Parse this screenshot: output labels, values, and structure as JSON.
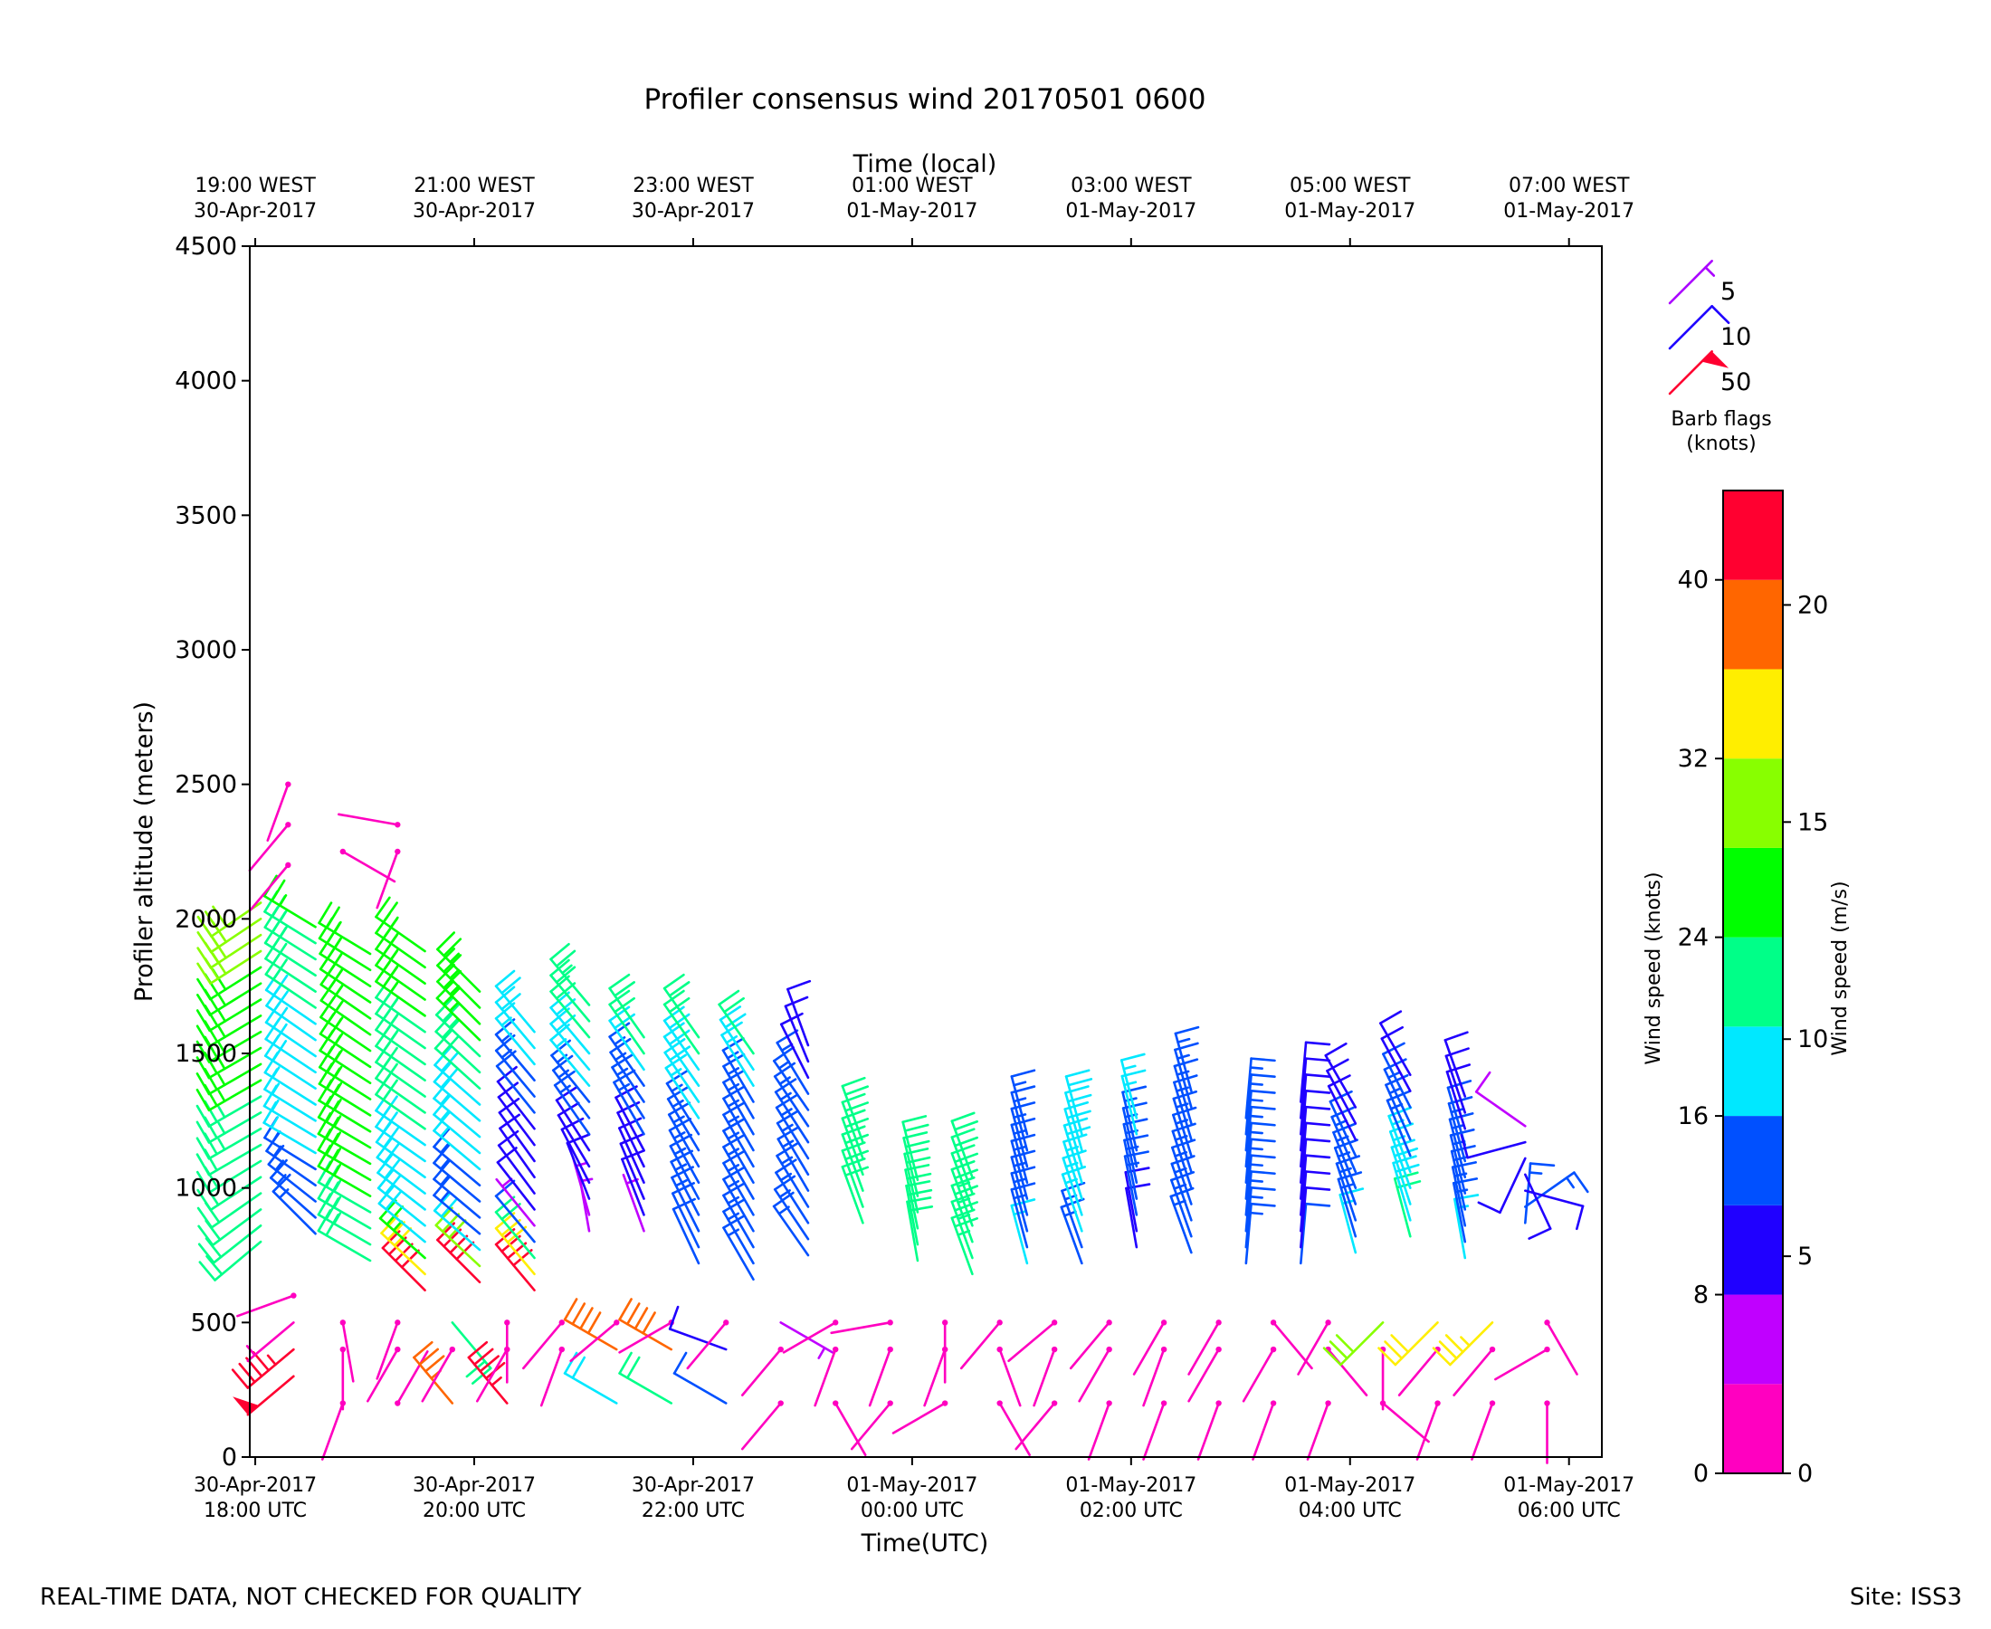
{
  "chart_data": {
    "type": "wind-barb",
    "title": "Profiler consensus wind 20170501 0600",
    "xlabel": "Time(UTC)",
    "xlabel_top": "Time (local)",
    "ylabel": "Profiler altitude (meters)",
    "ylim": [
      0,
      4500
    ],
    "yticks": [
      0,
      500,
      1000,
      1500,
      2000,
      2500,
      3000,
      3500,
      4000,
      4500
    ],
    "x_range_hours": [
      -0.05,
      12.3
    ],
    "x_start_utc": "30-Apr-2017 18:00 UTC",
    "xticks_bottom": [
      {
        "hour": 0,
        "line1": "30-Apr-2017",
        "line2": "18:00 UTC"
      },
      {
        "hour": 2,
        "line1": "30-Apr-2017",
        "line2": "20:00 UTC"
      },
      {
        "hour": 4,
        "line1": "30-Apr-2017",
        "line2": "22:00 UTC"
      },
      {
        "hour": 6,
        "line1": "01-May-2017",
        "line2": "00:00 UTC"
      },
      {
        "hour": 8,
        "line1": "01-May-2017",
        "line2": "02:00 UTC"
      },
      {
        "hour": 10,
        "line1": "01-May-2017",
        "line2": "04:00 UTC"
      },
      {
        "hour": 12,
        "line1": "01-May-2017",
        "line2": "06:00 UTC"
      }
    ],
    "xticks_top": [
      {
        "hour": 0,
        "line1": "19:00 WEST",
        "line2": "30-Apr-2017"
      },
      {
        "hour": 2,
        "line1": "21:00 WEST",
        "line2": "30-Apr-2017"
      },
      {
        "hour": 4,
        "line1": "23:00 WEST",
        "line2": "30-Apr-2017"
      },
      {
        "hour": 6,
        "line1": "01:00 WEST",
        "line2": "01-May-2017"
      },
      {
        "hour": 8,
        "line1": "03:00 WEST",
        "line2": "01-May-2017"
      },
      {
        "hour": 10,
        "line1": "05:00 WEST",
        "line2": "01-May-2017"
      },
      {
        "hour": 12,
        "line1": "07:00 WEST",
        "line2": "01-May-2017"
      }
    ],
    "legend": {
      "title": "Barb flags",
      "subtitle": "(knots)",
      "entries": [
        {
          "label": "5",
          "knots": 5,
          "color": "#aa00ff"
        },
        {
          "label": "10",
          "knots": 10,
          "color": "#1f00ff"
        },
        {
          "label": "50",
          "knots": 50,
          "color": "#ff0030"
        }
      ]
    },
    "colorbar": {
      "label_knots": "Wind speed (knots)",
      "label_ms": "Wind speed (m/s)",
      "knot_ticks": [
        0,
        8,
        16,
        24,
        32,
        40
      ],
      "ms_ticks": [
        0,
        5,
        10,
        15,
        20
      ],
      "range_knots": [
        0,
        44
      ],
      "bins": [
        {
          "from": 0,
          "to": 4,
          "color": "#ff00c0"
        },
        {
          "from": 4,
          "to": 8,
          "color": "#c000ff"
        },
        {
          "from": 8,
          "to": 12,
          "color": "#2000ff"
        },
        {
          "from": 12,
          "to": 16,
          "color": "#0050ff"
        },
        {
          "from": 16,
          "to": 20,
          "color": "#00e8ff"
        },
        {
          "from": 20,
          "to": 24,
          "color": "#00ff88"
        },
        {
          "from": 24,
          "to": 28,
          "color": "#00ff00"
        },
        {
          "from": 28,
          "to": 32,
          "color": "#88ff00"
        },
        {
          "from": 32,
          "to": 36,
          "color": "#ffee00"
        },
        {
          "from": 36,
          "to": 40,
          "color": "#ff6600"
        },
        {
          "from": 40,
          "to": 44,
          "color": "#ff0030"
        }
      ]
    },
    "upper_mode_profiles": [
      {
        "hour": 0.05,
        "bottom": 800,
        "top": 2100,
        "step": 60,
        "layers": [
          [
            800,
            230,
            22
          ],
          [
            1150,
            240,
            22
          ],
          [
            1550,
            240,
            26
          ],
          [
            2150,
            235,
            30
          ]
        ]
      },
      {
        "hour": 0.55,
        "bottom": 830,
        "top": 2000,
        "step": 60,
        "layers": [
          [
            830,
            315,
            13
          ],
          [
            1100,
            300,
            16
          ],
          [
            1550,
            305,
            19
          ],
          [
            2100,
            300,
            26
          ]
        ]
      },
      {
        "hour": 1.05,
        "bottom": 730,
        "top": 1880,
        "step": 60,
        "layers": [
          [
            730,
            300,
            22
          ],
          [
            1100,
            300,
            26
          ],
          [
            1600,
            305,
            26
          ],
          [
            1950,
            300,
            26
          ]
        ]
      },
      {
        "hour": 1.55,
        "bottom": 620,
        "top": 1900,
        "step": 60,
        "layers": [
          [
            620,
            315,
            40
          ],
          [
            790,
            310,
            18
          ],
          [
            1100,
            305,
            19
          ],
          [
            1600,
            305,
            24
          ],
          [
            1950,
            305,
            25
          ]
        ]
      },
      {
        "hour": 2.05,
        "bottom": 650,
        "top": 1780,
        "step": 60,
        "layers": [
          [
            650,
            315,
            41
          ],
          [
            800,
            310,
            14
          ],
          [
            1200,
            310,
            17
          ],
          [
            1600,
            315,
            25
          ],
          [
            1850,
            315,
            26
          ]
        ]
      },
      {
        "hour": 2.55,
        "bottom": 620,
        "top": 1580,
        "step": 60,
        "layers": [
          [
            620,
            320,
            42
          ],
          [
            830,
            320,
            7
          ],
          [
            1050,
            325,
            10
          ],
          [
            1350,
            320,
            13
          ],
          [
            1650,
            320,
            22
          ]
        ]
      },
      {
        "hour": 3.05,
        "bottom": 840,
        "top": 1720,
        "step": 60,
        "layers": [
          [
            840,
            350,
            6
          ],
          [
            1050,
            330,
            10
          ],
          [
            1350,
            320,
            16
          ],
          [
            1750,
            320,
            25
          ]
        ]
      },
      {
        "hour": 3.55,
        "bottom": 840,
        "top": 1600,
        "step": 60,
        "layers": [
          [
            840,
            340,
            7
          ],
          [
            1050,
            335,
            11
          ],
          [
            1350,
            325,
            14
          ],
          [
            1600,
            325,
            24
          ]
        ]
      },
      {
        "hour": 4.05,
        "bottom": 720,
        "top": 1600,
        "step": 60,
        "layers": [
          [
            720,
            335,
            12
          ],
          [
            1100,
            330,
            14
          ],
          [
            1350,
            325,
            18
          ],
          [
            1650,
            325,
            22
          ]
        ]
      },
      {
        "hour": 4.55,
        "bottom": 660,
        "top": 1500,
        "step": 60,
        "layers": [
          [
            660,
            330,
            15
          ],
          [
            1000,
            330,
            14
          ],
          [
            1300,
            330,
            15
          ],
          [
            1500,
            325,
            20
          ]
        ]
      },
      {
        "hour": 5.05,
        "bottom": 750,
        "top": 1530,
        "step": 60,
        "layers": [
          [
            750,
            325,
            15
          ],
          [
            1000,
            330,
            14
          ],
          [
            1300,
            325,
            14
          ],
          [
            1500,
            340,
            10
          ]
        ]
      },
      {
        "hour": 5.55,
        "bottom": 870,
        "top": 1200,
        "step": 60,
        "layers": [
          [
            870,
            340,
            20
          ],
          [
            1200,
            340,
            20
          ]
        ]
      },
      {
        "hour": 6.05,
        "bottom": 730,
        "top": 1080,
        "step": 60,
        "layers": [
          [
            730,
            350,
            21
          ],
          [
            1080,
            345,
            21
          ]
        ]
      },
      {
        "hour": 6.55,
        "bottom": 680,
        "top": 1080,
        "step": 60,
        "layers": [
          [
            680,
            340,
            23
          ],
          [
            1080,
            340,
            22
          ]
        ]
      },
      {
        "hour": 7.05,
        "bottom": 720,
        "top": 1220,
        "step": 60,
        "layers": [
          [
            720,
            345,
            16
          ],
          [
            1220,
            345,
            15
          ]
        ]
      },
      {
        "hour": 7.55,
        "bottom": 720,
        "top": 1220,
        "step": 60,
        "layers": [
          [
            720,
            340,
            15
          ],
          [
            1220,
            345,
            20
          ]
        ]
      },
      {
        "hour": 8.05,
        "bottom": 780,
        "top": 1300,
        "step": 60,
        "layers": [
          [
            780,
            350,
            11
          ],
          [
            1300,
            345,
            18
          ]
        ]
      },
      {
        "hour": 8.55,
        "bottom": 760,
        "top": 1400,
        "step": 60,
        "layers": [
          [
            760,
            340,
            13
          ],
          [
            1400,
            345,
            15
          ]
        ]
      },
      {
        "hour": 9.05,
        "bottom": 720,
        "top": 1300,
        "step": 60,
        "layers": [
          [
            720,
            5,
            13
          ],
          [
            1300,
            5,
            14
          ]
        ]
      },
      {
        "hour": 9.55,
        "bottom": 720,
        "top": 1320,
        "step": 60,
        "layers": [
          [
            720,
            5,
            12
          ],
          [
            1320,
            5,
            10
          ]
        ]
      },
      {
        "hour": 10.05,
        "bottom": 760,
        "top": 1300,
        "step": 60,
        "layers": [
          [
            760,
            345,
            16
          ],
          [
            1300,
            330,
            10
          ]
        ]
      },
      {
        "hour": 10.55,
        "bottom": 820,
        "top": 1420,
        "step": 60,
        "layers": [
          [
            820,
            345,
            20
          ],
          [
            1420,
            330,
            10
          ]
        ]
      },
      {
        "hour": 11.05,
        "bottom": 740,
        "top": 1380,
        "step": 60,
        "layers": [
          [
            740,
            350,
            16
          ],
          [
            1380,
            340,
            10
          ]
        ]
      },
      {
        "hour": 11.6,
        "bottom": 870,
        "top": 1260,
        "step": 60,
        "layers": [
          [
            870,
            5,
            14
          ],
          [
            1260,
            330,
            7
          ]
        ]
      }
    ],
    "low_mode_barbs": [
      [
        0.35,
        300,
        230,
        48
      ],
      [
        0.35,
        400,
        230,
        47
      ],
      [
        0.35,
        500,
        230,
        3
      ],
      [
        0.35,
        600,
        250,
        2
      ],
      [
        0.8,
        200,
        200,
        2
      ],
      [
        0.8,
        400,
        180,
        2
      ],
      [
        0.8,
        500,
        170,
        2
      ],
      [
        1.3,
        200,
        30,
        2
      ],
      [
        1.3,
        400,
        210,
        2
      ],
      [
        1.3,
        500,
        200,
        2
      ],
      [
        1.8,
        200,
        320,
        36
      ],
      [
        1.8,
        400,
        210,
        2
      ],
      [
        1.8,
        500,
        140,
        20
      ],
      [
        2.3,
        200,
        320,
        44
      ],
      [
        2.3,
        400,
        210,
        2
      ],
      [
        2.3,
        500,
        180,
        2
      ],
      [
        2.8,
        400,
        200,
        2
      ],
      [
        2.8,
        500,
        220,
        2
      ],
      [
        3.3,
        200,
        300,
        18
      ],
      [
        3.3,
        400,
        300,
        38
      ],
      [
        3.3,
        500,
        230,
        2
      ],
      [
        3.8,
        200,
        300,
        20
      ],
      [
        3.8,
        400,
        300,
        38
      ],
      [
        3.8,
        500,
        240,
        2
      ],
      [
        4.3,
        200,
        300,
        12
      ],
      [
        4.3,
        400,
        290,
        10
      ],
      [
        4.3,
        500,
        220,
        2
      ],
      [
        4.8,
        200,
        220,
        2
      ],
      [
        4.8,
        400,
        220,
        2
      ],
      [
        4.8,
        500,
        120,
        4
      ],
      [
        5.3,
        200,
        150,
        2
      ],
      [
        5.3,
        400,
        200,
        2
      ],
      [
        5.3,
        500,
        240,
        2
      ],
      [
        5.8,
        200,
        220,
        2
      ],
      [
        5.8,
        400,
        200,
        2
      ],
      [
        5.8,
        500,
        260,
        2
      ],
      [
        6.3,
        200,
        240,
        2
      ],
      [
        6.3,
        400,
        200,
        2
      ],
      [
        6.3,
        500,
        180,
        2
      ],
      [
        6.8,
        200,
        150,
        2
      ],
      [
        6.8,
        400,
        160,
        2
      ],
      [
        6.8,
        500,
        220,
        2
      ],
      [
        7.3,
        200,
        220,
        2
      ],
      [
        7.3,
        400,
        200,
        2
      ],
      [
        7.3,
        500,
        230,
        2
      ],
      [
        7.8,
        200,
        200,
        2
      ],
      [
        7.8,
        400,
        210,
        2
      ],
      [
        7.8,
        500,
        220,
        2
      ],
      [
        8.3,
        200,
        200,
        2
      ],
      [
        8.3,
        400,
        200,
        2
      ],
      [
        8.3,
        500,
        210,
        2
      ],
      [
        8.8,
        200,
        200,
        2
      ],
      [
        8.8,
        400,
        210,
        2
      ],
      [
        8.8,
        500,
        210,
        2
      ],
      [
        9.3,
        200,
        200,
        2
      ],
      [
        9.3,
        400,
        210,
        2
      ],
      [
        9.3,
        500,
        140,
        2
      ],
      [
        9.8,
        200,
        200,
        2
      ],
      [
        9.8,
        400,
        140,
        2
      ],
      [
        9.8,
        500,
        210,
        2
      ],
      [
        10.3,
        200,
        130,
        2
      ],
      [
        10.3,
        400,
        180,
        2
      ],
      [
        10.3,
        500,
        225,
        28
      ],
      [
        10.8,
        200,
        200,
        2
      ],
      [
        10.8,
        400,
        220,
        2
      ],
      [
        10.8,
        500,
        225,
        32
      ],
      [
        11.3,
        200,
        200,
        2
      ],
      [
        11.3,
        400,
        220,
        2
      ],
      [
        11.3,
        500,
        225,
        35
      ],
      [
        11.8,
        200,
        180,
        2
      ],
      [
        11.8,
        400,
        240,
        2
      ],
      [
        11.8,
        500,
        150,
        2
      ]
    ],
    "isolated_barbs": [
      [
        0.3,
        2200,
        220,
        2
      ],
      [
        0.3,
        2350,
        220,
        2
      ],
      [
        0.3,
        2500,
        200,
        2
      ],
      [
        0.8,
        2250,
        120,
        2
      ],
      [
        1.3,
        2250,
        200,
        2
      ],
      [
        1.3,
        2350,
        280,
        2
      ]
    ]
  },
  "footer": {
    "left": "REAL-TIME DATA, NOT CHECKED FOR QUALITY",
    "right": "Site: ISS3"
  }
}
